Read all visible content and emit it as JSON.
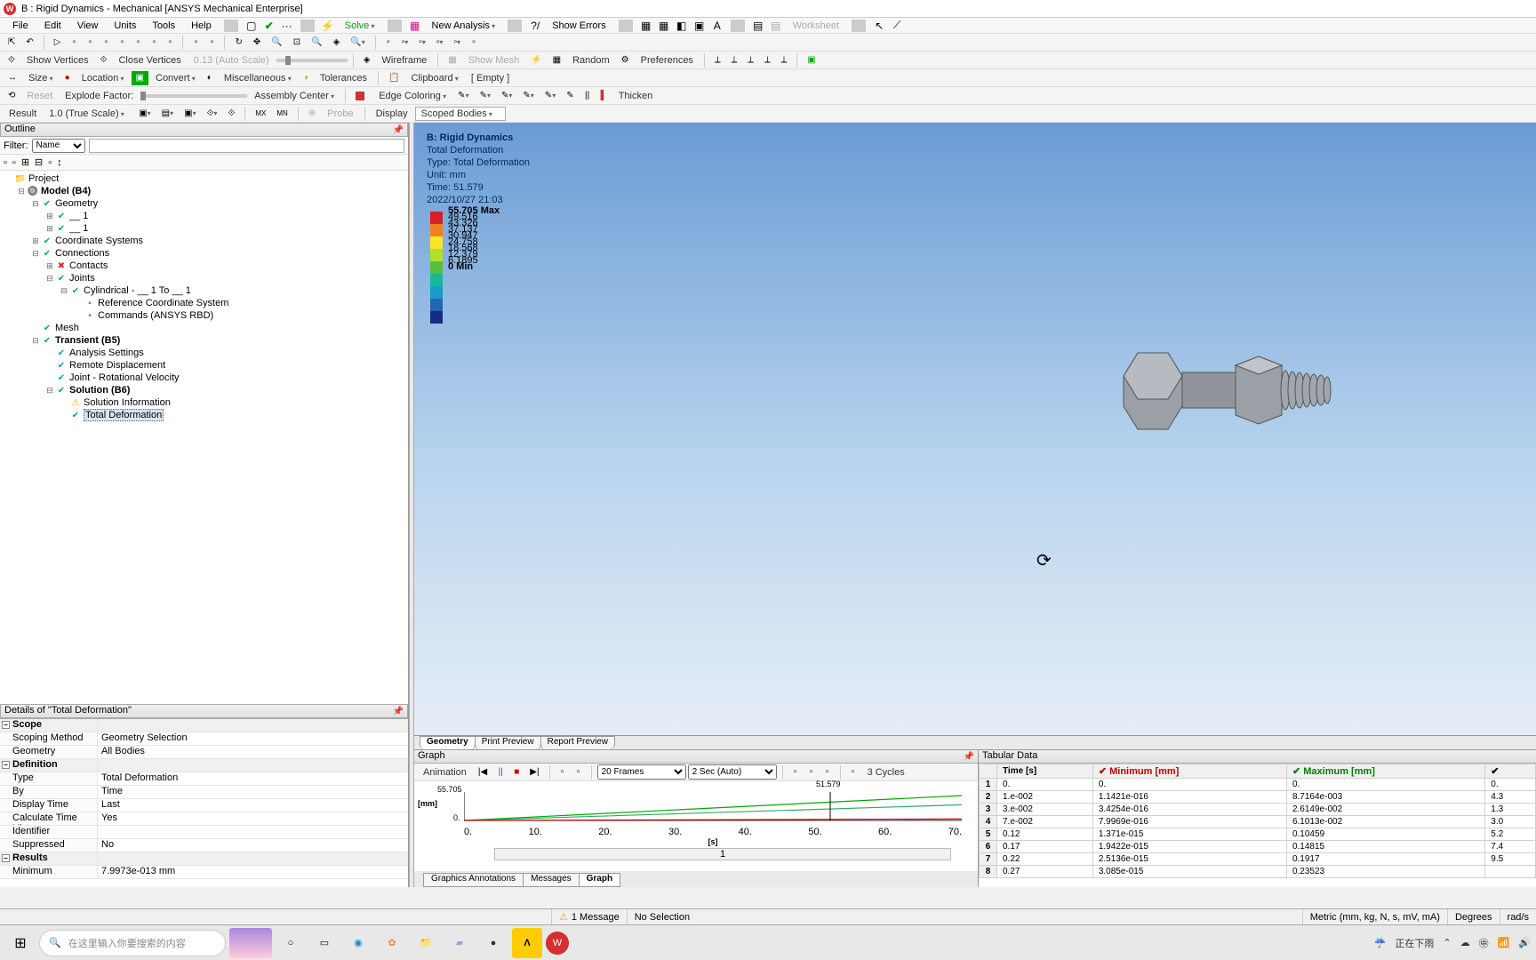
{
  "window": {
    "title": "B : Rigid Dynamics - Mechanical [ANSYS Mechanical Enterprise]"
  },
  "menu": {
    "items": [
      "File",
      "Edit",
      "View",
      "Units",
      "Tools",
      "Help"
    ],
    "solve": "Solve",
    "new_analysis": "New Analysis",
    "show_errors": "Show Errors",
    "worksheet": "Worksheet"
  },
  "toolbar2": {
    "show_vertices": "Show Vertices",
    "close_vertices": "Close Vertices",
    "scale": "0.13 (Auto Scale)",
    "wireframe": "Wireframe",
    "show_mesh": "Show Mesh",
    "random": "Random",
    "preferences": "Preferences"
  },
  "toolbar3": {
    "size": "Size",
    "location": "Location",
    "convert": "Convert",
    "misc": "Miscellaneous",
    "tolerances": "Tolerances",
    "clipboard": "Clipboard",
    "empty": "[ Empty ]"
  },
  "toolbar4": {
    "reset": "Reset",
    "explode": "Explode Factor:",
    "assembly": "Assembly Center",
    "edge": "Edge Coloring",
    "thicken": "Thicken"
  },
  "toolbar5": {
    "result": "Result",
    "scale": "1.0 (True Scale)",
    "probe": "Probe",
    "display": "Display",
    "scoped": "Scoped Bodies"
  },
  "outline": {
    "title": "Outline",
    "filter": "Filter:",
    "filter_val": "Name",
    "tree": [
      {
        "d": 0,
        "exp": "",
        "icon": "📁",
        "lbl": "Project",
        "bold": false
      },
      {
        "d": 1,
        "exp": "⊟",
        "icon": "🔘",
        "lbl": "Model (B4)",
        "bold": true
      },
      {
        "d": 2,
        "exp": "⊟",
        "icon": "✔",
        "lbl": "Geometry",
        "bold": false,
        "ico_c": "#0a9"
      },
      {
        "d": 3,
        "exp": "⊞",
        "icon": "✔",
        "lbl": "__ 1",
        "bold": false,
        "ico_c": "#0a9"
      },
      {
        "d": 3,
        "exp": "⊞",
        "icon": "✔",
        "lbl": "__ 1",
        "bold": false,
        "ico_c": "#0a9"
      },
      {
        "d": 2,
        "exp": "⊞",
        "icon": "✔",
        "lbl": "Coordinate Systems",
        "bold": false,
        "ico_c": "#0a9"
      },
      {
        "d": 2,
        "exp": "⊟",
        "icon": "✔",
        "lbl": "Connections",
        "bold": false,
        "ico_c": "#0a9"
      },
      {
        "d": 3,
        "exp": "⊞",
        "icon": "✖",
        "lbl": "Contacts",
        "bold": false,
        "ico_c": "#c33"
      },
      {
        "d": 3,
        "exp": "⊟",
        "icon": "✔",
        "lbl": "Joints",
        "bold": false,
        "ico_c": "#0a9"
      },
      {
        "d": 4,
        "exp": "⊟",
        "icon": "✔",
        "lbl": "Cylindrical - __ 1 To __ 1",
        "bold": false,
        "ico_c": "#0a9"
      },
      {
        "d": 5,
        "exp": "",
        "icon": "▪",
        "lbl": "Reference Coordinate System",
        "bold": false,
        "ico_c": "#c66"
      },
      {
        "d": 5,
        "exp": "",
        "icon": "▪",
        "lbl": "Commands (ANSYS RBD)",
        "bold": false,
        "ico_c": "#c66"
      },
      {
        "d": 2,
        "exp": "",
        "icon": "✔",
        "lbl": "Mesh",
        "bold": false,
        "ico_c": "#0a9"
      },
      {
        "d": 2,
        "exp": "⊟",
        "icon": "✔",
        "lbl": "Transient (B5)",
        "bold": true,
        "ico_c": "#0a9"
      },
      {
        "d": 3,
        "exp": "",
        "icon": "✔",
        "lbl": "Analysis Settings",
        "bold": false,
        "ico_c": "#0a9"
      },
      {
        "d": 3,
        "exp": "",
        "icon": "✔",
        "lbl": "Remote Displacement",
        "bold": false,
        "ico_c": "#0a9"
      },
      {
        "d": 3,
        "exp": "",
        "icon": "✔",
        "lbl": "Joint - Rotational Velocity",
        "bold": false,
        "ico_c": "#0a9"
      },
      {
        "d": 3,
        "exp": "⊟",
        "icon": "✔",
        "lbl": "Solution (B6)",
        "bold": true,
        "ico_c": "#0a9"
      },
      {
        "d": 4,
        "exp": "",
        "icon": "⚠",
        "lbl": "Solution Information",
        "bold": false,
        "ico_c": "#ea0"
      },
      {
        "d": 4,
        "exp": "",
        "icon": "✔",
        "lbl": "Total Deformation",
        "bold": false,
        "ico_c": "#0a9",
        "sel": true
      }
    ]
  },
  "details": {
    "title": "Details of \"Total Deformation\"",
    "groups": [
      {
        "name": "Scope",
        "rows": [
          [
            "Scoping Method",
            "Geometry Selection"
          ],
          [
            "Geometry",
            "All Bodies"
          ]
        ]
      },
      {
        "name": "Definition",
        "rows": [
          [
            "Type",
            "Total Deformation"
          ],
          [
            "By",
            "Time"
          ],
          [
            "Display Time",
            "Last"
          ],
          [
            "Calculate Time History",
            "Yes"
          ],
          [
            "Identifier",
            ""
          ],
          [
            "Suppressed",
            "No"
          ]
        ]
      },
      {
        "name": "Results",
        "rows": [
          [
            "Minimum",
            "7.9973e-013 mm"
          ]
        ]
      }
    ]
  },
  "viewport": {
    "title": "B: Rigid Dynamics",
    "name": "Total Deformation",
    "type": "Type: Total Deformation",
    "unit": "Unit: mm",
    "time": "Time: 51.579",
    "date": "2022/10/27 21:03",
    "legend": {
      "colors": [
        "#d62027",
        "#ef7f23",
        "#f6e824",
        "#b3de2c",
        "#55c03b",
        "#17b79a",
        "#189dc7",
        "#1f66b5",
        "#182a84"
      ],
      "labels": [
        "55.705 Max",
        "49.516",
        "43.326",
        "37.137",
        "30.947",
        "24.758",
        "18.568",
        "12.379",
        "6.1895",
        "0 Min"
      ]
    },
    "tabs": [
      "Geometry",
      "Print Preview",
      "Report Preview"
    ]
  },
  "graph": {
    "title": "Graph",
    "animation": "Animation",
    "frames": "20 Frames",
    "sec": "2 Sec (Auto)",
    "cycles": "3 Cycles",
    "ymax": "55.705",
    "ymin": "0.",
    "ylabel": "[mm]",
    "xlabel": "[s]",
    "xticks": [
      "0.",
      "10.",
      "20.",
      "30.",
      "40.",
      "50.",
      "60.",
      "70."
    ],
    "marker_t": "51.579",
    "scroll_lbl": "1",
    "tabs": [
      "Graphics Annotations",
      "Messages",
      "Graph"
    ]
  },
  "tabular": {
    "title": "Tabular Data",
    "cols": [
      "",
      "Time [s]",
      "Minimum [mm]",
      "Maximum [mm]",
      ""
    ],
    "rows": [
      [
        "1",
        "0.",
        "0.",
        "0.",
        "0."
      ],
      [
        "2",
        "1.e-002",
        "1.1421e-016",
        "8.7164e-003",
        "4.3"
      ],
      [
        "3",
        "3.e-002",
        "3.4254e-016",
        "2.6149e-002",
        "1.3"
      ],
      [
        "4",
        "7.e-002",
        "7.9969e-016",
        "6.1013e-002",
        "3.0"
      ],
      [
        "5",
        "0.12",
        "1.371e-015",
        "0.10459",
        "5.2"
      ],
      [
        "6",
        "0.17",
        "1.9422e-015",
        "0.14815",
        "7.4"
      ],
      [
        "7",
        "0.22",
        "2.5136e-015",
        "0.1917",
        "9.5"
      ],
      [
        "8",
        "0.27",
        "3.085e-015",
        "0.23523",
        ""
      ]
    ]
  },
  "status": {
    "msg": "1 Message",
    "sel": "No Selection",
    "units": "Metric (mm, kg, N, s, mV, mA)",
    "deg": "Degrees",
    "rads": "rad/s"
  },
  "taskbar": {
    "search": "在这里输入你要搜索的内容",
    "weather": "正在下雨"
  }
}
